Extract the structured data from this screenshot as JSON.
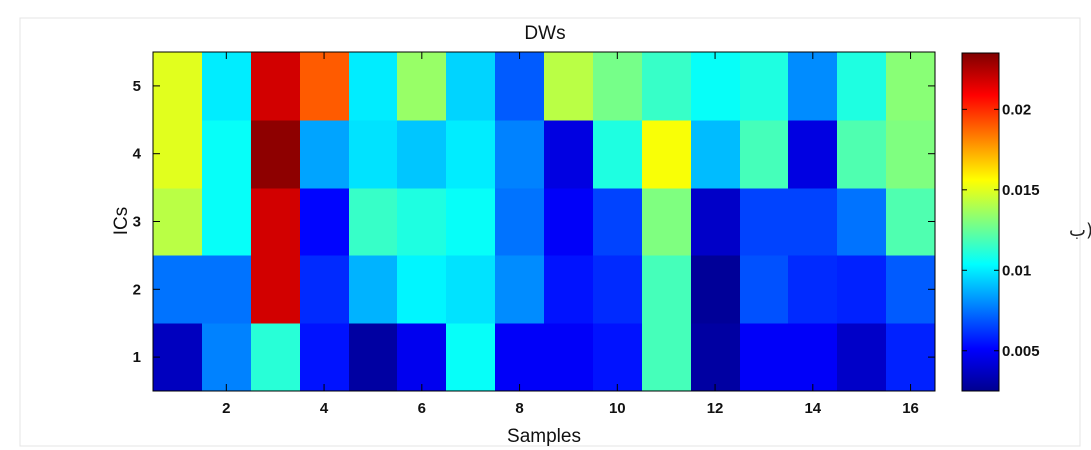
{
  "chart_data": {
    "type": "heatmap",
    "title": "DWs",
    "xlabel": "Samples",
    "ylabel": "ICs",
    "x": [
      1,
      2,
      3,
      4,
      5,
      6,
      7,
      8,
      9,
      10,
      11,
      12,
      13,
      14,
      15,
      16
    ],
    "y": [
      1,
      2,
      3,
      4,
      5
    ],
    "x_ticks": [
      "2",
      "4",
      "6",
      "8",
      "10",
      "12",
      "14",
      "16"
    ],
    "x_tick_values": [
      2,
      4,
      6,
      8,
      10,
      12,
      14,
      16
    ],
    "y_ticks": [
      "1",
      "2",
      "3",
      "4",
      "5"
    ],
    "y_tick_values": [
      1,
      2,
      3,
      4,
      5
    ],
    "values": [
      [
        0.0038,
        0.0078,
        0.0112,
        0.0055,
        0.0032,
        0.0048,
        0.0105,
        0.005,
        0.005,
        0.0055,
        0.0118,
        0.0032,
        0.005,
        0.005,
        0.004,
        0.0058
      ],
      [
        0.0075,
        0.0075,
        0.0218,
        0.006,
        0.0088,
        0.0102,
        0.0098,
        0.008,
        0.0055,
        0.006,
        0.0118,
        0.003,
        0.0068,
        0.006,
        0.0058,
        0.007
      ],
      [
        0.0142,
        0.0105,
        0.0218,
        0.0052,
        0.0115,
        0.011,
        0.0105,
        0.0075,
        0.005,
        0.0065,
        0.013,
        0.004,
        0.0065,
        0.0065,
        0.0075,
        0.012
      ],
      [
        0.015,
        0.0105,
        0.0232,
        0.0085,
        0.0098,
        0.0092,
        0.01,
        0.0078,
        0.0045,
        0.011,
        0.0155,
        0.009,
        0.0118,
        0.0045,
        0.012,
        0.013
      ],
      [
        0.015,
        0.01,
        0.0218,
        0.019,
        0.01,
        0.0135,
        0.0095,
        0.007,
        0.0142,
        0.0128,
        0.0115,
        0.0105,
        0.011,
        0.008,
        0.011,
        0.0132
      ]
    ],
    "colorbar": {
      "min": 0.0025,
      "max": 0.0235,
      "ticks": [
        0.005,
        0.01,
        0.015,
        0.02
      ],
      "tick_labels": [
        "0.005",
        "0.01",
        "0.015",
        "0.02"
      ],
      "colormap": "jet",
      "placement": "right"
    },
    "side_text": "ب)"
  }
}
